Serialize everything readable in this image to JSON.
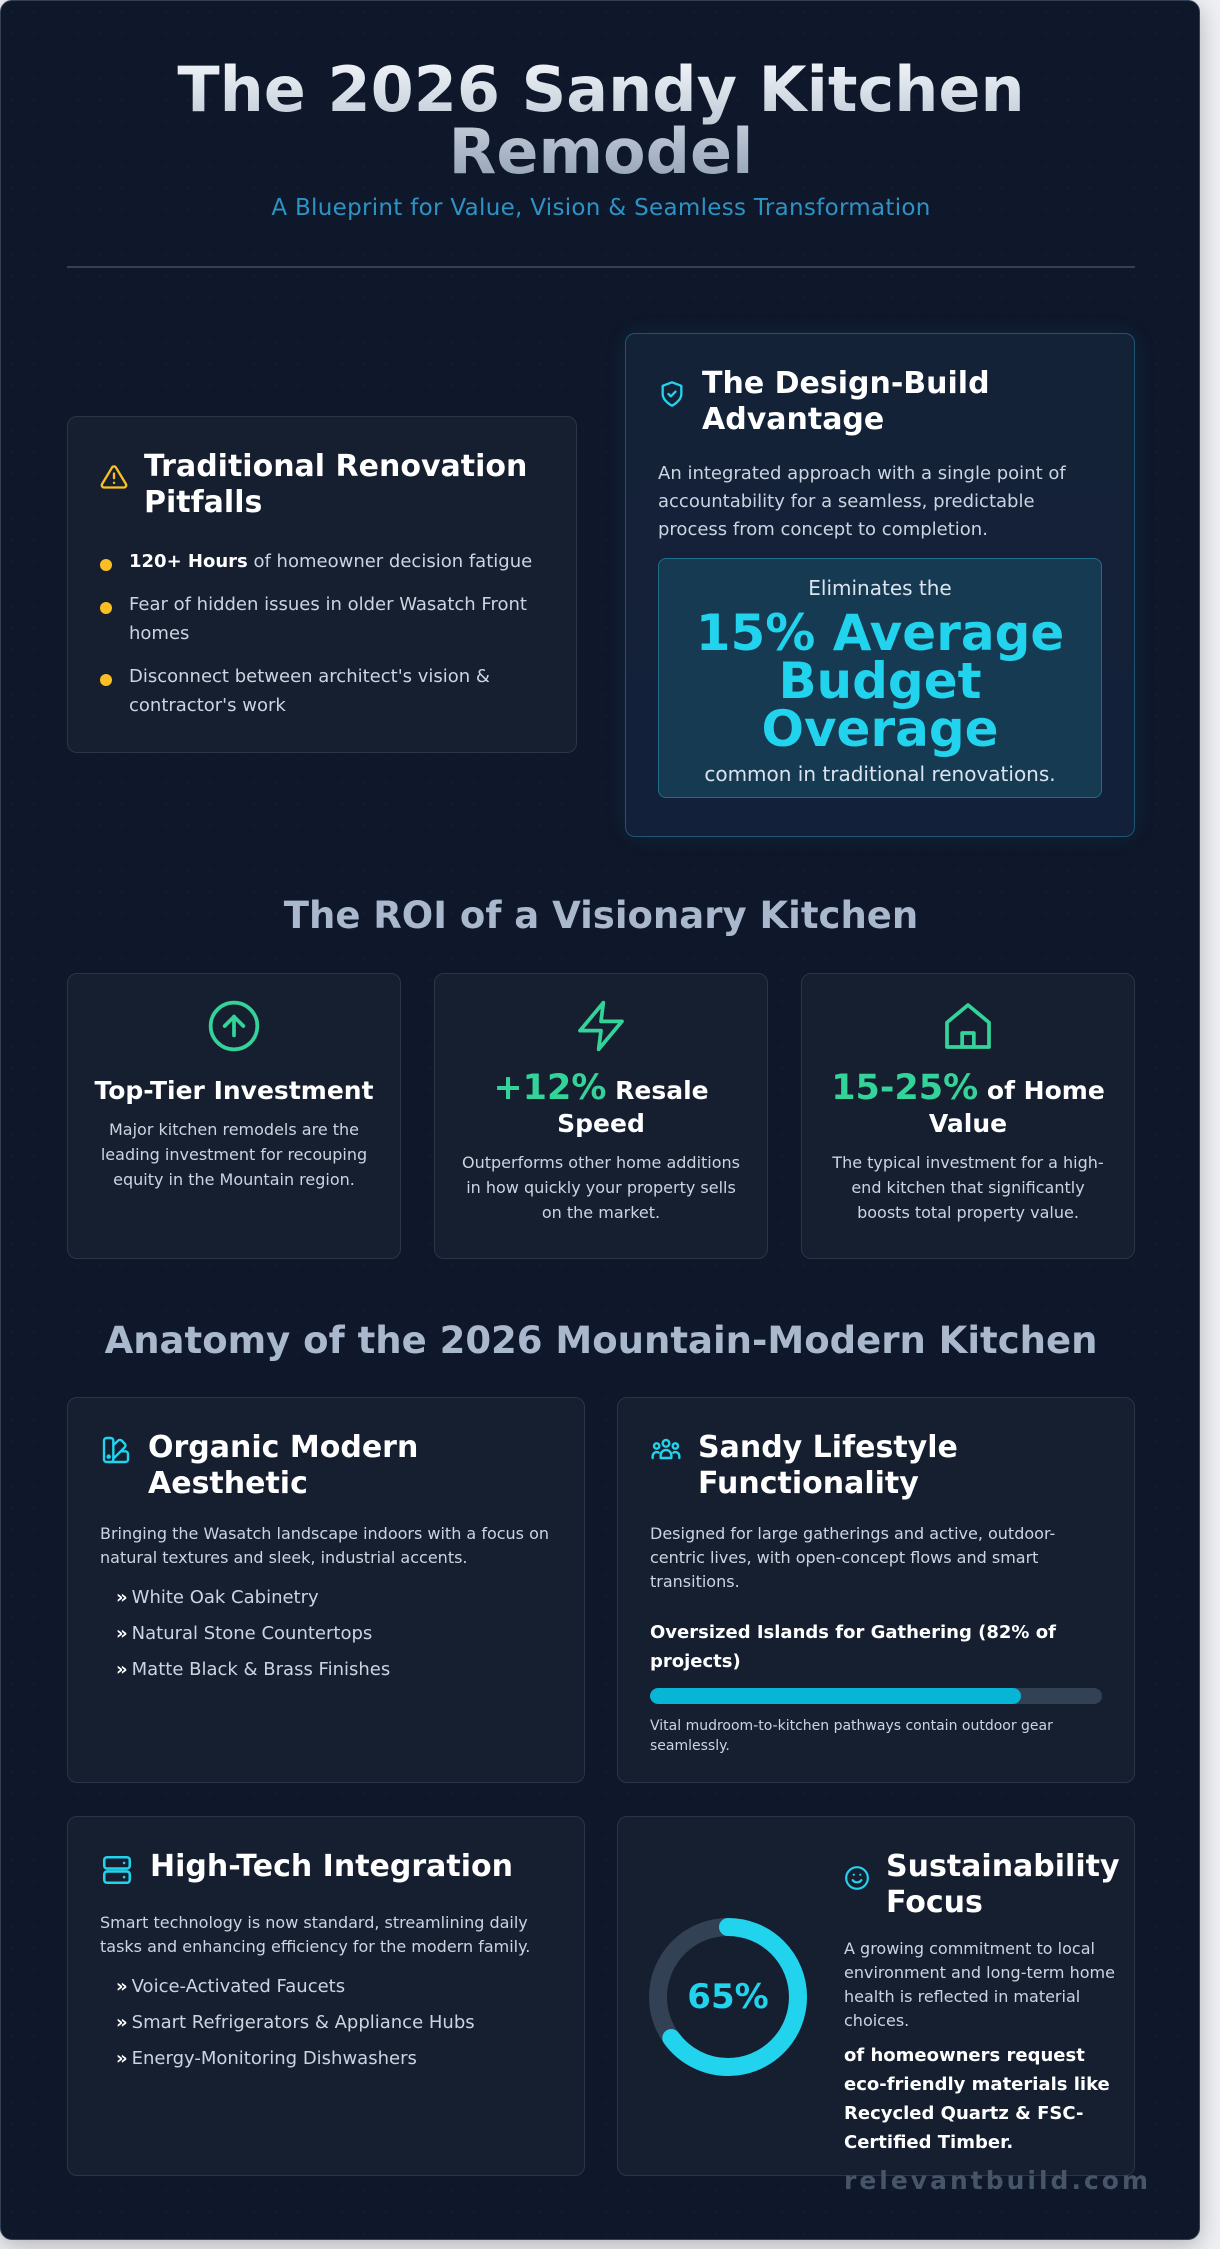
{
  "header": {
    "title_line1": "The 2026 Sandy Kitchen",
    "title_line2": "Remodel",
    "subtitle": "A Blueprint for Value, Vision & Seamless Transformation"
  },
  "pitfalls": {
    "icon": "warning-triangle-icon",
    "title": "Traditional Renovation Pitfalls",
    "item1_bold": "120+ Hours",
    "item1_rest": " of homeowner decision fatigue",
    "item2": "Fear of hidden issues in older Wasatch Front homes",
    "item3": "Disconnect between architect's vision & contractor's work"
  },
  "design_build": {
    "icon": "shield-check-icon",
    "title": "The Design-Build Advantage",
    "description": "An integrated approach with a single point of accountability for a seamless, predictable process from concept to completion.",
    "stat_pre": "Eliminates the",
    "stat_big": "15% Average Budget Overage",
    "stat_post": "common in traditional renovations."
  },
  "roi": {
    "section_title": "The ROI of a Visionary Kitchen",
    "cards": [
      {
        "icon": "arrow-up-circle-icon",
        "accent": "",
        "title": "Top-Tier Investment",
        "description": "Major kitchen remodels are the leading investment for recouping equity in the Mountain region."
      },
      {
        "icon": "lightning-bolt-icon",
        "accent": "+12%",
        "title": " Resale Speed",
        "description": "Outperforms other home additions in how quickly your property sells on the market."
      },
      {
        "icon": "house-icon",
        "accent": "15-25%",
        "title": " of Home Value",
        "description": "The typical investment for a high-end kitchen that significantly boosts total property value."
      }
    ]
  },
  "anatomy": {
    "section_title": "Anatomy of the 2026 Mountain-Modern Kitchen",
    "organic": {
      "icon": "swatch-palette-icon",
      "title": "Organic Modern Aesthetic",
      "description": "Bringing the Wasatch landscape indoors with a focus on natural textures and sleek, industrial accents.",
      "items": [
        "White Oak Cabinetry",
        "Natural Stone Countertops",
        "Matte Black & Brass Finishes"
      ]
    },
    "lifestyle": {
      "icon": "people-group-icon",
      "title": "Sandy Lifestyle Functionality",
      "description": "Designed for large gatherings and active, outdoor-centric lives, with open-concept flows and smart transitions.",
      "bar_label": "Oversized Islands for Gathering (82% of projects)",
      "bar_value": 0.82,
      "note": "Vital mudroom-to-kitchen pathways contain outdoor gear seamlessly."
    },
    "hightech": {
      "icon": "server-icon",
      "title": "High-Tech Integration",
      "description": "Smart technology is now standard, streamlining daily tasks and enhancing efficiency for the modern family.",
      "items": [
        "Voice-Activated Faucets",
        "Smart Refrigerators & Appliance Hubs",
        "Energy-Monitoring Dishwashers"
      ]
    },
    "sustainability": {
      "icon": "smiley-icon",
      "title": "Sustainability Focus",
      "percent_label": "65%",
      "percent_value": 0.65,
      "description": "A growing commitment to local environment and long-term home health is reflected in material choices.",
      "bold_text": "of homeowners request eco-friendly materials like Recycled Quartz & FSC-Certified Timber."
    }
  },
  "footer": {
    "site": "relevantbuild.com"
  },
  "colors": {
    "accent_cyan": "#22d3ee",
    "accent_green": "#34d399",
    "warning": "#fbbf24",
    "background": "#0f172a"
  }
}
